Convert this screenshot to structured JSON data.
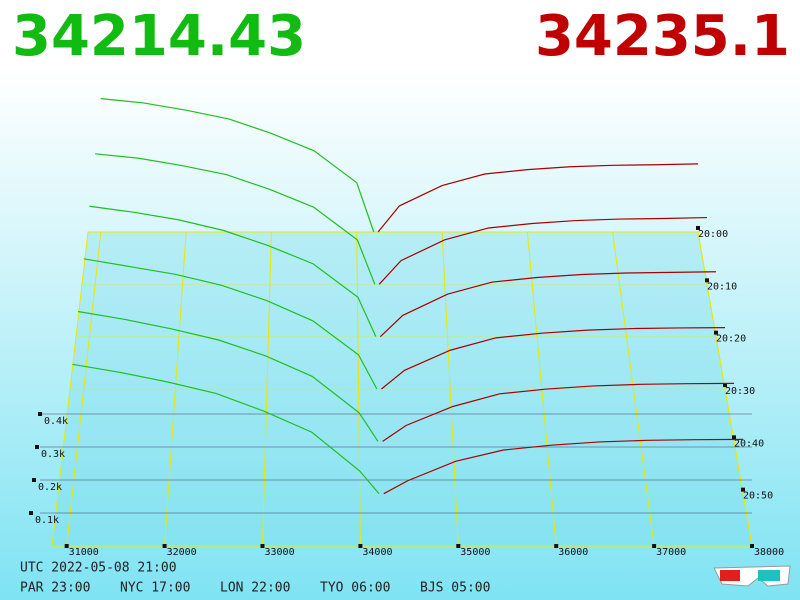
{
  "bid_price": "34214.43",
  "ask_price": "34235.1",
  "chart_data": {
    "type": "depth3d",
    "xlim": [
      30850,
      38000
    ],
    "xticks": [
      31000,
      32000,
      33000,
      34000,
      35000,
      36000,
      37000,
      38000
    ],
    "yticks": [
      {
        "value": 100,
        "label": "0.1k"
      },
      {
        "value": 200,
        "label": "0.2k"
      },
      {
        "value": 300,
        "label": "0.3k"
      },
      {
        "value": 400,
        "label": "0.4k"
      }
    ],
    "times": [
      "20:00",
      "20:10",
      "20:20",
      "20:30",
      "20:40",
      "20:50"
    ],
    "bid_color": "#1fbf1f",
    "ask_color": "#a80000",
    "grid_color": "#e8e800",
    "bid_prices": [
      31000,
      31500,
      32000,
      32500,
      33000,
      33500,
      34000,
      34200
    ],
    "ask_prices": [
      34250,
      34500,
      35000,
      35500,
      36000,
      36500,
      37000,
      37500,
      38000
    ],
    "snapshots": [
      {
        "bids": [
          460,
          445,
          420,
          390,
          340,
          280,
          170,
          0
        ],
        "asks": [
          0,
          90,
          160,
          200,
          215,
          225,
          230,
          232,
          235
        ]
      },
      {
        "bids": [
          440,
          425,
          400,
          370,
          320,
          260,
          150,
          0
        ],
        "asks": [
          0,
          80,
          150,
          190,
          205,
          215,
          220,
          222,
          225
        ]
      },
      {
        "bids": [
          430,
          410,
          385,
          350,
          300,
          240,
          130,
          0
        ],
        "asks": [
          0,
          70,
          140,
          180,
          195,
          205,
          210,
          212,
          214
        ]
      },
      {
        "bids": [
          420,
          395,
          370,
          335,
          285,
          220,
          110,
          0
        ],
        "asks": [
          0,
          60,
          125,
          165,
          180,
          190,
          195,
          197,
          198
        ]
      },
      {
        "bids": [
          410,
          385,
          355,
          320,
          270,
          205,
          90,
          0
        ],
        "asks": [
          0,
          50,
          110,
          150,
          165,
          175,
          180,
          182,
          183
        ]
      },
      {
        "bids": [
          400,
          375,
          345,
          310,
          255,
          190,
          70,
          0
        ],
        "asks": [
          0,
          40,
          100,
          135,
          150,
          160,
          165,
          167,
          168
        ]
      }
    ]
  },
  "footer": {
    "utc": "UTC 2022-05-08 21:00",
    "zones": [
      "PAR 23:00",
      "NYC 17:00",
      "LON 22:00",
      "TYO 06:00",
      "BJS 05:00"
    ]
  }
}
